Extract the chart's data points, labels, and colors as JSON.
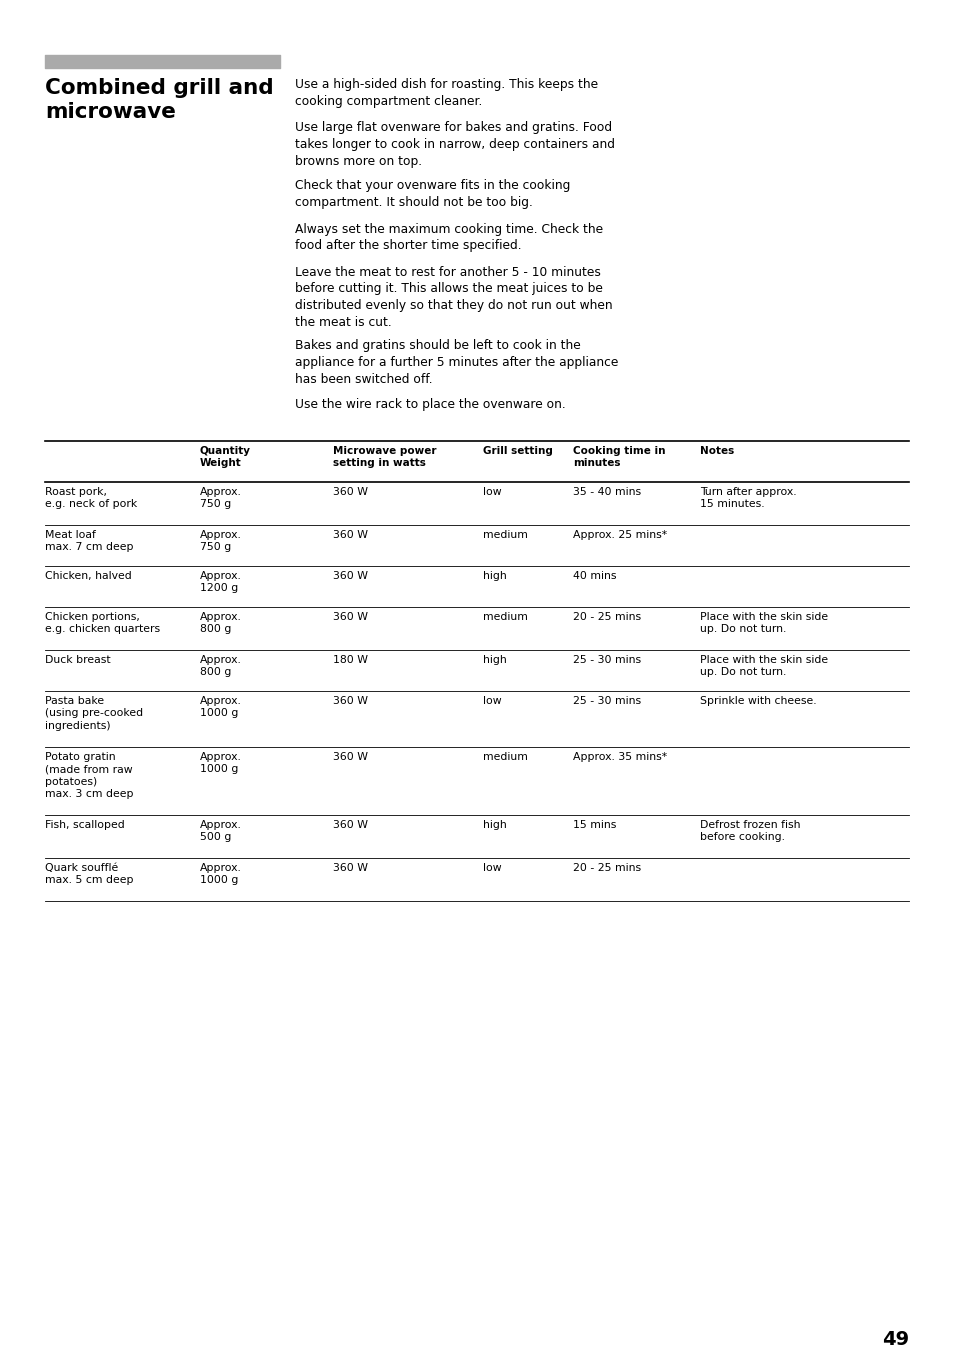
{
  "title": "Combined grill and\nmicrowave",
  "gray_bar_color": "#aaaaaa",
  "background_color": "#ffffff",
  "text_color": "#000000",
  "body_paragraphs": [
    "Use a high-sided dish for roasting. This keeps the\ncooking compartment cleaner.",
    "Use large flat ovenware for bakes and gratins. Food\ntakes longer to cook in narrow, deep containers and\nbrowns more on top.",
    "Check that your ovenware fits in the cooking\ncompartment. It should not be too big.",
    "Always set the maximum cooking time. Check the\nfood after the shorter time specified.",
    "Leave the meat to rest for another 5 - 10 minutes\nbefore cutting it. This allows the meat juices to be\ndistributed evenly so that they do not run out when\nthe meat is cut.",
    "Bakes and gratins should be left to cook in the\nappliance for a further 5 minutes after the appliance\nhas been switched off.",
    "Use the wire rack to place the ovenware on."
  ],
  "col_headers": [
    "Quantity\nWeight",
    "Microwave power\nsetting in watts",
    "Grill setting",
    "Cooking time in\nminutes",
    "Notes"
  ],
  "table_rows": [
    {
      "item": "Roast pork,\ne.g. neck of pork",
      "quantity": "Approx.\n750 g",
      "microwave": "360 W",
      "grill": "low",
      "time": "35 - 40 mins",
      "notes": "Turn after approx.\n15 minutes."
    },
    {
      "item": "Meat loaf\nmax. 7 cm deep",
      "quantity": "Approx.\n750 g",
      "microwave": "360 W",
      "grill": "medium",
      "time": "Approx. 25 mins*",
      "notes": ""
    },
    {
      "item": "Chicken, halved",
      "quantity": "Approx.\n1200 g",
      "microwave": "360 W",
      "grill": "high",
      "time": "40 mins",
      "notes": ""
    },
    {
      "item": "Chicken portions,\ne.g. chicken quarters",
      "quantity": "Approx.\n800 g",
      "microwave": "360 W",
      "grill": "medium",
      "time": "20 - 25 mins",
      "notes": "Place with the skin side\nup. Do not turn."
    },
    {
      "item": "Duck breast",
      "quantity": "Approx.\n800 g",
      "microwave": "180 W",
      "grill": "high",
      "time": "25 - 30 mins",
      "notes": "Place with the skin side\nup. Do not turn."
    },
    {
      "item": "Pasta bake\n(using pre-cooked\ningredients)",
      "quantity": "Approx.\n1000 g",
      "microwave": "360 W",
      "grill": "low",
      "time": "25 - 30 mins",
      "notes": "Sprinkle with cheese."
    },
    {
      "item": "Potato gratin\n(made from raw\npotatoes)\nmax. 3 cm deep",
      "quantity": "Approx.\n1000 g",
      "microwave": "360 W",
      "grill": "medium",
      "time": "Approx. 35 mins*",
      "notes": ""
    },
    {
      "item": "Fish, scalloped",
      "quantity": "Approx.\n500 g",
      "microwave": "360 W",
      "grill": "high",
      "time": "15 mins",
      "notes": "Defrost frozen fish\nbefore cooking."
    },
    {
      "item": "Quark soufflé\nmax. 5 cm deep",
      "quantity": "Approx.\n1000 g",
      "microwave": "360 W",
      "grill": "low",
      "time": "20 - 25 mins",
      "notes": ""
    }
  ],
  "page_number": "49"
}
